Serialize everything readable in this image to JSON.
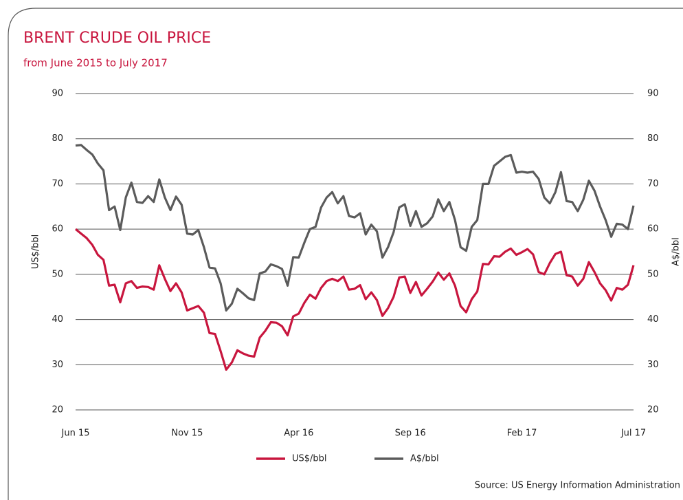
{
  "chart_data": {
    "type": "line",
    "title": "BRENT CRUDE OIL PRICE",
    "subtitle": "from June 2015 to July 2017",
    "ylabel": "US$/bbl",
    "y2label": "A$/bbl",
    "source": "Source: US Energy Information Administration",
    "categories": [
      "Jun 15",
      null,
      null,
      null,
      null,
      null,
      null,
      null,
      null,
      null,
      null,
      null,
      null,
      null,
      null,
      null,
      null,
      null,
      null,
      null,
      "Nov 15",
      null,
      null,
      null,
      null,
      null,
      null,
      null,
      null,
      null,
      null,
      null,
      null,
      null,
      null,
      null,
      null,
      null,
      null,
      null,
      "Apr 16",
      null,
      null,
      null,
      null,
      null,
      null,
      null,
      null,
      null,
      null,
      null,
      null,
      null,
      null,
      null,
      null,
      null,
      null,
      null,
      "Sep 16",
      null,
      null,
      null,
      null,
      null,
      null,
      null,
      null,
      null,
      null,
      null,
      null,
      null,
      null,
      null,
      null,
      null,
      null,
      null,
      "Feb 17",
      null,
      null,
      null,
      null,
      null,
      null,
      null,
      null,
      null,
      null,
      null,
      null,
      null,
      null,
      null,
      null,
      null,
      null,
      null,
      "Jul 17"
    ],
    "series": [
      {
        "name": "US$/bbl",
        "color": "#c8163e",
        "values": [
          60,
          59,
          58,
          56.5,
          54.3,
          53.2,
          47.5,
          47.7,
          43.8,
          48,
          48.5,
          47,
          47.3,
          47.2,
          46.6,
          52,
          49,
          46.3,
          48,
          46,
          42,
          42.5,
          43,
          41.5,
          37,
          36.8,
          33,
          28.9,
          30.5,
          33.2,
          32.5,
          32,
          31.8,
          36,
          37.5,
          39.4,
          39.3,
          38.5,
          36.5,
          40.7,
          41.3,
          43.7,
          45.5,
          44.6,
          47,
          48.5,
          49,
          48.5,
          49.5,
          46.6,
          46.8,
          47.6,
          44.5,
          46,
          44.3,
          40.8,
          42.5,
          45,
          49.3,
          49.5,
          45.9,
          48.3,
          45.3,
          46.8,
          48.4,
          50.4,
          48.8,
          50.2,
          47.5,
          43,
          41.6,
          44.5,
          46.2,
          52.3,
          52.2,
          54,
          53.9,
          55,
          55.7,
          54.3,
          54.9,
          55.6,
          54.4,
          50.5,
          50,
          52.5,
          54.5,
          55,
          49.8,
          49.5,
          47.5,
          49,
          52.7,
          50.5,
          48,
          46.5,
          44.2,
          47,
          46.6,
          47.7,
          52
        ]
      },
      {
        "name": "A$/bbl",
        "color": "#5b5b5b",
        "axis": "y2",
        "values": [
          78.5,
          78.6,
          77.5,
          76.5,
          74.5,
          73,
          64.2,
          65,
          59.8,
          67,
          70.3,
          66,
          65.8,
          67.3,
          66,
          71,
          67,
          64.2,
          67.2,
          65.4,
          59,
          58.8,
          59.8,
          56,
          51.5,
          51.3,
          48,
          42,
          43.5,
          46.8,
          45.8,
          44.7,
          44.3,
          50.2,
          50.6,
          52.2,
          51.8,
          51.2,
          47.5,
          53.8,
          53.7,
          57,
          60,
          60.5,
          64.8,
          67,
          68.2,
          65.7,
          67.3,
          62.9,
          62.6,
          63.5,
          58.8,
          61,
          59.5,
          53.7,
          56,
          59.3,
          64.8,
          65.5,
          60.7,
          64,
          60.5,
          61.3,
          62.8,
          66.6,
          64,
          66,
          62,
          56,
          55.2,
          60.5,
          62,
          70,
          70,
          74,
          75,
          76,
          76.4,
          72.5,
          72.7,
          72.5,
          72.7,
          71.1,
          67,
          65.7,
          68.2,
          72.6,
          66.2,
          66,
          64,
          66.5,
          70.7,
          68.5,
          65,
          62,
          58.3,
          61.2,
          61,
          60,
          65.2
        ]
      }
    ],
    "ylim": [
      20,
      90
    ],
    "yticks": [
      20,
      30,
      40,
      50,
      60,
      70,
      80,
      90
    ],
    "y2lim": [
      20,
      90
    ],
    "y2ticks": [
      20,
      30,
      40,
      50,
      60,
      70,
      80,
      90
    ],
    "grid": true,
    "legend": "bottom"
  }
}
